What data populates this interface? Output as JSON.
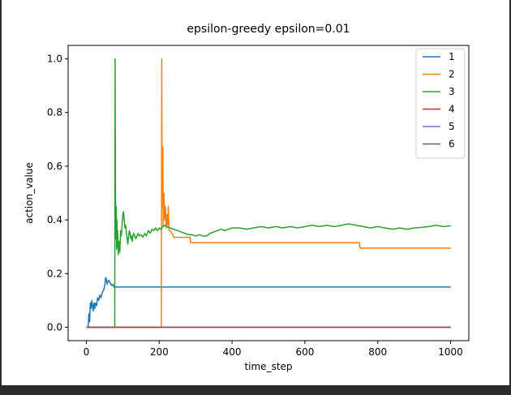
{
  "chart_data": {
    "type": "line",
    "title": "epsilon-greedy epsilon=0.01",
    "xlabel": "time_step",
    "ylabel": "action_value",
    "xlim": [
      -50,
      1050
    ],
    "ylim": [
      -0.05,
      1.05
    ],
    "xticks": [
      0,
      200,
      400,
      600,
      800,
      1000
    ],
    "yticks": [
      0.0,
      0.2,
      0.4,
      0.6,
      0.8,
      1.0
    ],
    "xtick_labels": [
      "0",
      "200",
      "400",
      "600",
      "800",
      "1000"
    ],
    "ytick_labels": [
      "0.0",
      "0.2",
      "0.4",
      "0.6",
      "0.8",
      "1.0"
    ],
    "grid": false,
    "legend_position": "top-right",
    "series": [
      {
        "name": "1",
        "color": "#1f77b4",
        "points": [
          [
            0,
            0
          ],
          [
            5,
            0
          ],
          [
            7,
            0.05
          ],
          [
            9,
            0.02
          ],
          [
            11,
            0.09
          ],
          [
            13,
            0.07
          ],
          [
            15,
            0.1
          ],
          [
            17,
            0.08
          ],
          [
            19,
            0.06
          ],
          [
            21,
            0.09
          ],
          [
            23,
            0.07
          ],
          [
            25,
            0.09
          ],
          [
            28,
            0.08
          ],
          [
            31,
            0.11
          ],
          [
            34,
            0.1
          ],
          [
            37,
            0.12
          ],
          [
            40,
            0.11
          ],
          [
            44,
            0.13
          ],
          [
            48,
            0.14
          ],
          [
            51,
            0.16
          ],
          [
            53,
            0.185
          ],
          [
            55,
            0.18
          ],
          [
            57,
            0.16
          ],
          [
            59,
            0.17
          ],
          [
            62,
            0.175
          ],
          [
            65,
            0.165
          ],
          [
            68,
            0.16
          ],
          [
            70,
            0.155
          ],
          [
            73,
            0.16
          ],
          [
            76,
            0.15
          ],
          [
            80,
            0.15
          ],
          [
            1000,
            0.15
          ]
        ]
      },
      {
        "name": "2",
        "color": "#ff7f0e",
        "points": [
          [
            0,
            0
          ],
          [
            206,
            0
          ],
          [
            207,
            1.0
          ],
          [
            208,
            0.5
          ],
          [
            209,
            0.45
          ],
          [
            210,
            0.67
          ],
          [
            211,
            0.38
          ],
          [
            213,
            0.5
          ],
          [
            215,
            0.4
          ],
          [
            217,
            0.45
          ],
          [
            219,
            0.37
          ],
          [
            221,
            0.42
          ],
          [
            223,
            0.38
          ],
          [
            225,
            0.45
          ],
          [
            227,
            0.36
          ],
          [
            230,
            0.36
          ],
          [
            235,
            0.35
          ],
          [
            240,
            0.335
          ],
          [
            260,
            0.335
          ],
          [
            285,
            0.335
          ],
          [
            286,
            0.315
          ],
          [
            750,
            0.315
          ],
          [
            751,
            0.295
          ],
          [
            1000,
            0.295
          ]
        ]
      },
      {
        "name": "3",
        "color": "#2ca02c",
        "points": [
          [
            0,
            0
          ],
          [
            78,
            0
          ],
          [
            79,
            1.0
          ],
          [
            80,
            0.5
          ],
          [
            81,
            0.33
          ],
          [
            82,
            0.45
          ],
          [
            83,
            0.29
          ],
          [
            84,
            0.4
          ],
          [
            85,
            0.3
          ],
          [
            86,
            0.36
          ],
          [
            87,
            0.3
          ],
          [
            88,
            0.27
          ],
          [
            90,
            0.32
          ],
          [
            92,
            0.28
          ],
          [
            94,
            0.36
          ],
          [
            96,
            0.34
          ],
          [
            98,
            0.38
          ],
          [
            100,
            0.42
          ],
          [
            102,
            0.43
          ],
          [
            104,
            0.4
          ],
          [
            106,
            0.37
          ],
          [
            108,
            0.38
          ],
          [
            110,
            0.35
          ],
          [
            112,
            0.33
          ],
          [
            114,
            0.31
          ],
          [
            116,
            0.34
          ],
          [
            118,
            0.36
          ],
          [
            120,
            0.35
          ],
          [
            122,
            0.33
          ],
          [
            124,
            0.34
          ],
          [
            126,
            0.32
          ],
          [
            128,
            0.34
          ],
          [
            130,
            0.35
          ],
          [
            133,
            0.34
          ],
          [
            136,
            0.33
          ],
          [
            139,
            0.34
          ],
          [
            142,
            0.35
          ],
          [
            145,
            0.34
          ],
          [
            150,
            0.345
          ],
          [
            155,
            0.335
          ],
          [
            160,
            0.35
          ],
          [
            165,
            0.34
          ],
          [
            170,
            0.36
          ],
          [
            175,
            0.35
          ],
          [
            180,
            0.365
          ],
          [
            185,
            0.36
          ],
          [
            190,
            0.37
          ],
          [
            195,
            0.36
          ],
          [
            200,
            0.37
          ],
          [
            205,
            0.365
          ],
          [
            210,
            0.375
          ],
          [
            215,
            0.38
          ],
          [
            220,
            0.375
          ],
          [
            230,
            0.37
          ],
          [
            240,
            0.365
          ],
          [
            250,
            0.36
          ],
          [
            260,
            0.355
          ],
          [
            270,
            0.35
          ],
          [
            280,
            0.345
          ],
          [
            290,
            0.345
          ],
          [
            300,
            0.34
          ],
          [
            310,
            0.345
          ],
          [
            320,
            0.34
          ],
          [
            330,
            0.34
          ],
          [
            340,
            0.35
          ],
          [
            350,
            0.355
          ],
          [
            360,
            0.36
          ],
          [
            370,
            0.365
          ],
          [
            380,
            0.36
          ],
          [
            390,
            0.365
          ],
          [
            400,
            0.37
          ],
          [
            420,
            0.37
          ],
          [
            440,
            0.365
          ],
          [
            460,
            0.37
          ],
          [
            480,
            0.375
          ],
          [
            500,
            0.37
          ],
          [
            520,
            0.375
          ],
          [
            540,
            0.37
          ],
          [
            560,
            0.375
          ],
          [
            580,
            0.37
          ],
          [
            600,
            0.375
          ],
          [
            620,
            0.38
          ],
          [
            640,
            0.375
          ],
          [
            660,
            0.38
          ],
          [
            680,
            0.375
          ],
          [
            700,
            0.38
          ],
          [
            720,
            0.385
          ],
          [
            740,
            0.38
          ],
          [
            760,
            0.375
          ],
          [
            780,
            0.37
          ],
          [
            800,
            0.375
          ],
          [
            820,
            0.37
          ],
          [
            840,
            0.365
          ],
          [
            860,
            0.37
          ],
          [
            880,
            0.365
          ],
          [
            900,
            0.37
          ],
          [
            920,
            0.372
          ],
          [
            940,
            0.375
          ],
          [
            960,
            0.38
          ],
          [
            980,
            0.375
          ],
          [
            1000,
            0.378
          ]
        ]
      },
      {
        "name": "4",
        "color": "#d62728",
        "points": [
          [
            0,
            0
          ],
          [
            1000,
            0
          ]
        ]
      },
      {
        "name": "5",
        "color": "#9467bd",
        "points": [
          [
            0,
            0
          ],
          [
            1000,
            0
          ]
        ]
      },
      {
        "name": "6",
        "color": "#8c564b",
        "points": [
          [
            0,
            0
          ],
          [
            1000,
            0
          ]
        ]
      }
    ]
  }
}
